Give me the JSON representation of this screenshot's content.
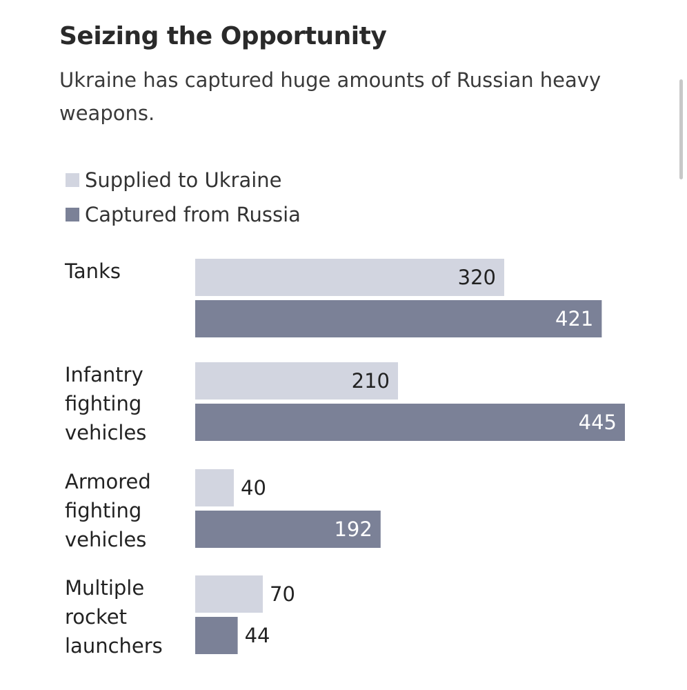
{
  "chart_data": {
    "type": "bar",
    "orientation": "horizontal",
    "title": "Seizing the Opportunity",
    "subtitle": "Ukraine has captured huge amounts of Russian heavy weapons.",
    "categories": [
      [
        "Tanks"
      ],
      [
        "Infantry",
        "fighting",
        "vehicles"
      ],
      [
        "Armored",
        "fighting",
        "vehicles"
      ],
      [
        "Multiple",
        "rocket",
        "launchers"
      ]
    ],
    "series": [
      {
        "name": "Supplied to Ukraine",
        "color": "#d2d5e0",
        "label_color": "#222222",
        "values": [
          320,
          210,
          40,
          70
        ]
      },
      {
        "name": "Captured from Russia",
        "color": "#7b8197",
        "label_color": "#ffffff",
        "values": [
          421,
          445,
          192,
          44
        ]
      }
    ],
    "xlim": [
      0,
      445
    ],
    "legend_position": "top-left",
    "grid": false
  }
}
